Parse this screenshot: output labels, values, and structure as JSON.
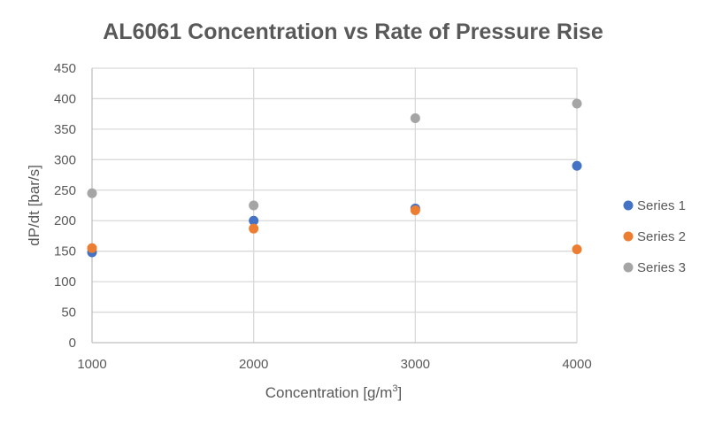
{
  "chart_data": {
    "type": "scatter",
    "title": "AL6061 Concentration vs Rate of Pressure Rise",
    "xlabel": "Concentration [g/m",
    "xlabel_sup": "3",
    "xlabel_end": "]",
    "ylabel": "dP/dt [bar/s]",
    "xlim": [
      1000,
      4000
    ],
    "ylim": [
      0,
      450
    ],
    "x_ticks": [
      1000,
      2000,
      3000,
      4000
    ],
    "y_ticks": [
      0,
      50,
      100,
      150,
      200,
      250,
      300,
      350,
      400,
      450
    ],
    "grid": true,
    "legend_position": "right",
    "series": [
      {
        "name": "Series 1",
        "color": "#4472C4",
        "x": [
          1000,
          2000,
          3000,
          4000
        ],
        "y": [
          148,
          200,
          220,
          290
        ]
      },
      {
        "name": "Series 2",
        "color": "#ED7D31",
        "x": [
          1000,
          2000,
          3000,
          4000
        ],
        "y": [
          155,
          187,
          217,
          153
        ]
      },
      {
        "name": "Series 3",
        "color": "#A5A5A5",
        "x": [
          1000,
          2000,
          3000,
          4000
        ],
        "y": [
          245,
          225,
          368,
          392
        ]
      }
    ]
  }
}
